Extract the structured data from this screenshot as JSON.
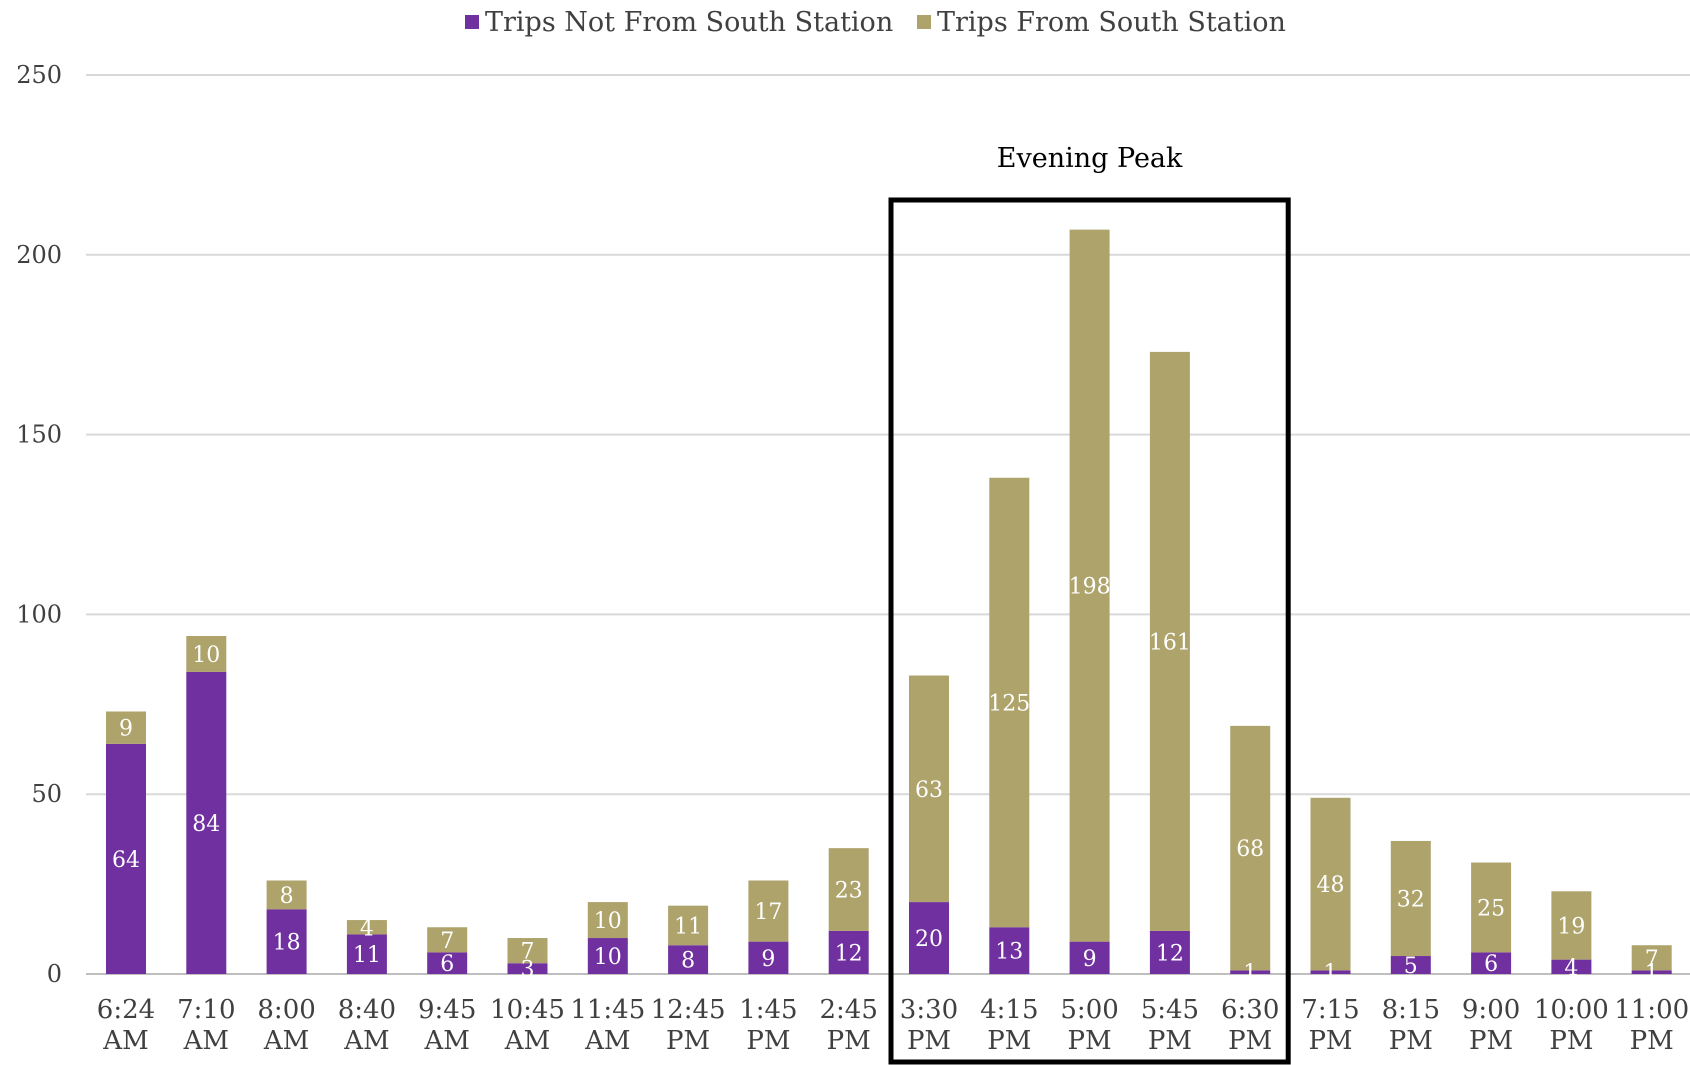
{
  "chart_data": {
    "type": "bar",
    "stacked": true,
    "categories": [
      [
        "6:24",
        "AM"
      ],
      [
        "7:10",
        "AM"
      ],
      [
        "8:00",
        "AM"
      ],
      [
        "8:40",
        "AM"
      ],
      [
        "9:45",
        "AM"
      ],
      [
        "10:45",
        "AM"
      ],
      [
        "11:45",
        "AM"
      ],
      [
        "12:45",
        "PM"
      ],
      [
        "1:45",
        "PM"
      ],
      [
        "2:45",
        "PM"
      ],
      [
        "3:30",
        "PM"
      ],
      [
        "4:15",
        "PM"
      ],
      [
        "5:00",
        "PM"
      ],
      [
        "5:45",
        "PM"
      ],
      [
        "6:30",
        "PM"
      ],
      [
        "7:15",
        "PM"
      ],
      [
        "8:15",
        "PM"
      ],
      [
        "9:00",
        "PM"
      ],
      [
        "10:00",
        "PM"
      ],
      [
        "11:00",
        "PM"
      ]
    ],
    "series": [
      {
        "name": "Trips Not From South Station",
        "color": "#7030a0",
        "values": [
          64,
          84,
          18,
          11,
          6,
          3,
          10,
          8,
          9,
          12,
          20,
          13,
          9,
          12,
          1,
          1,
          5,
          6,
          4,
          1
        ]
      },
      {
        "name": "Trips From South Station",
        "color": "#ada36b",
        "values": [
          9,
          10,
          8,
          4,
          7,
          7,
          10,
          11,
          17,
          23,
          63,
          125,
          198,
          161,
          68,
          48,
          32,
          25,
          19,
          7
        ]
      }
    ],
    "ylim": [
      0,
      250
    ],
    "yticks": [
      0,
      50,
      100,
      150,
      200,
      250
    ],
    "grid": true,
    "legend_position": "top-center",
    "annotation": {
      "label": "Evening Peak",
      "from_category": "3:30",
      "to_category": "6:30"
    }
  }
}
